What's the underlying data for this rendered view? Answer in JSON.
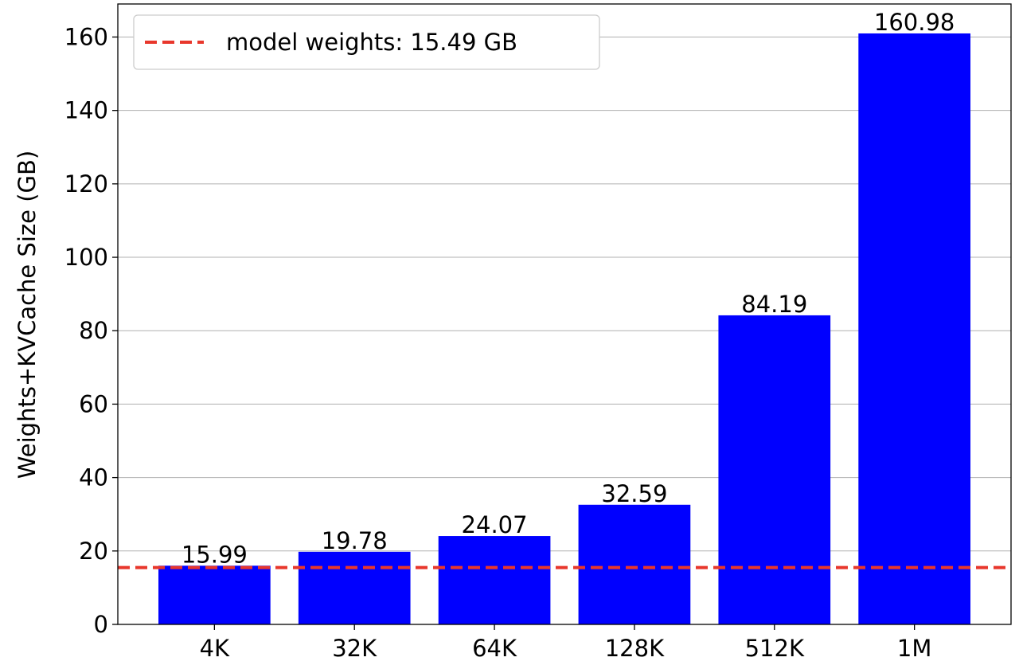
{
  "chart_data": {
    "type": "bar",
    "categories": [
      "4K",
      "32K",
      "64K",
      "128K",
      "512K",
      "1M"
    ],
    "values": [
      15.99,
      19.78,
      24.07,
      32.59,
      84.19,
      160.98
    ],
    "data_labels": [
      "15.99",
      "19.78",
      "24.07",
      "32.59",
      "84.19",
      "160.98"
    ],
    "title": "",
    "xlabel": "",
    "ylabel": "Weights+KVCache Size (GB)",
    "ylim": [
      0,
      169
    ],
    "yticks": [
      0,
      20,
      40,
      60,
      80,
      100,
      120,
      140,
      160
    ],
    "grid": "horizontal",
    "bar_color": "#0000ff",
    "reference_line": {
      "value": 15.49,
      "label": "model weights: 15.49 GB",
      "color": "#e8372c",
      "style": "dashed"
    },
    "legend": {
      "placement": "top-left"
    }
  }
}
